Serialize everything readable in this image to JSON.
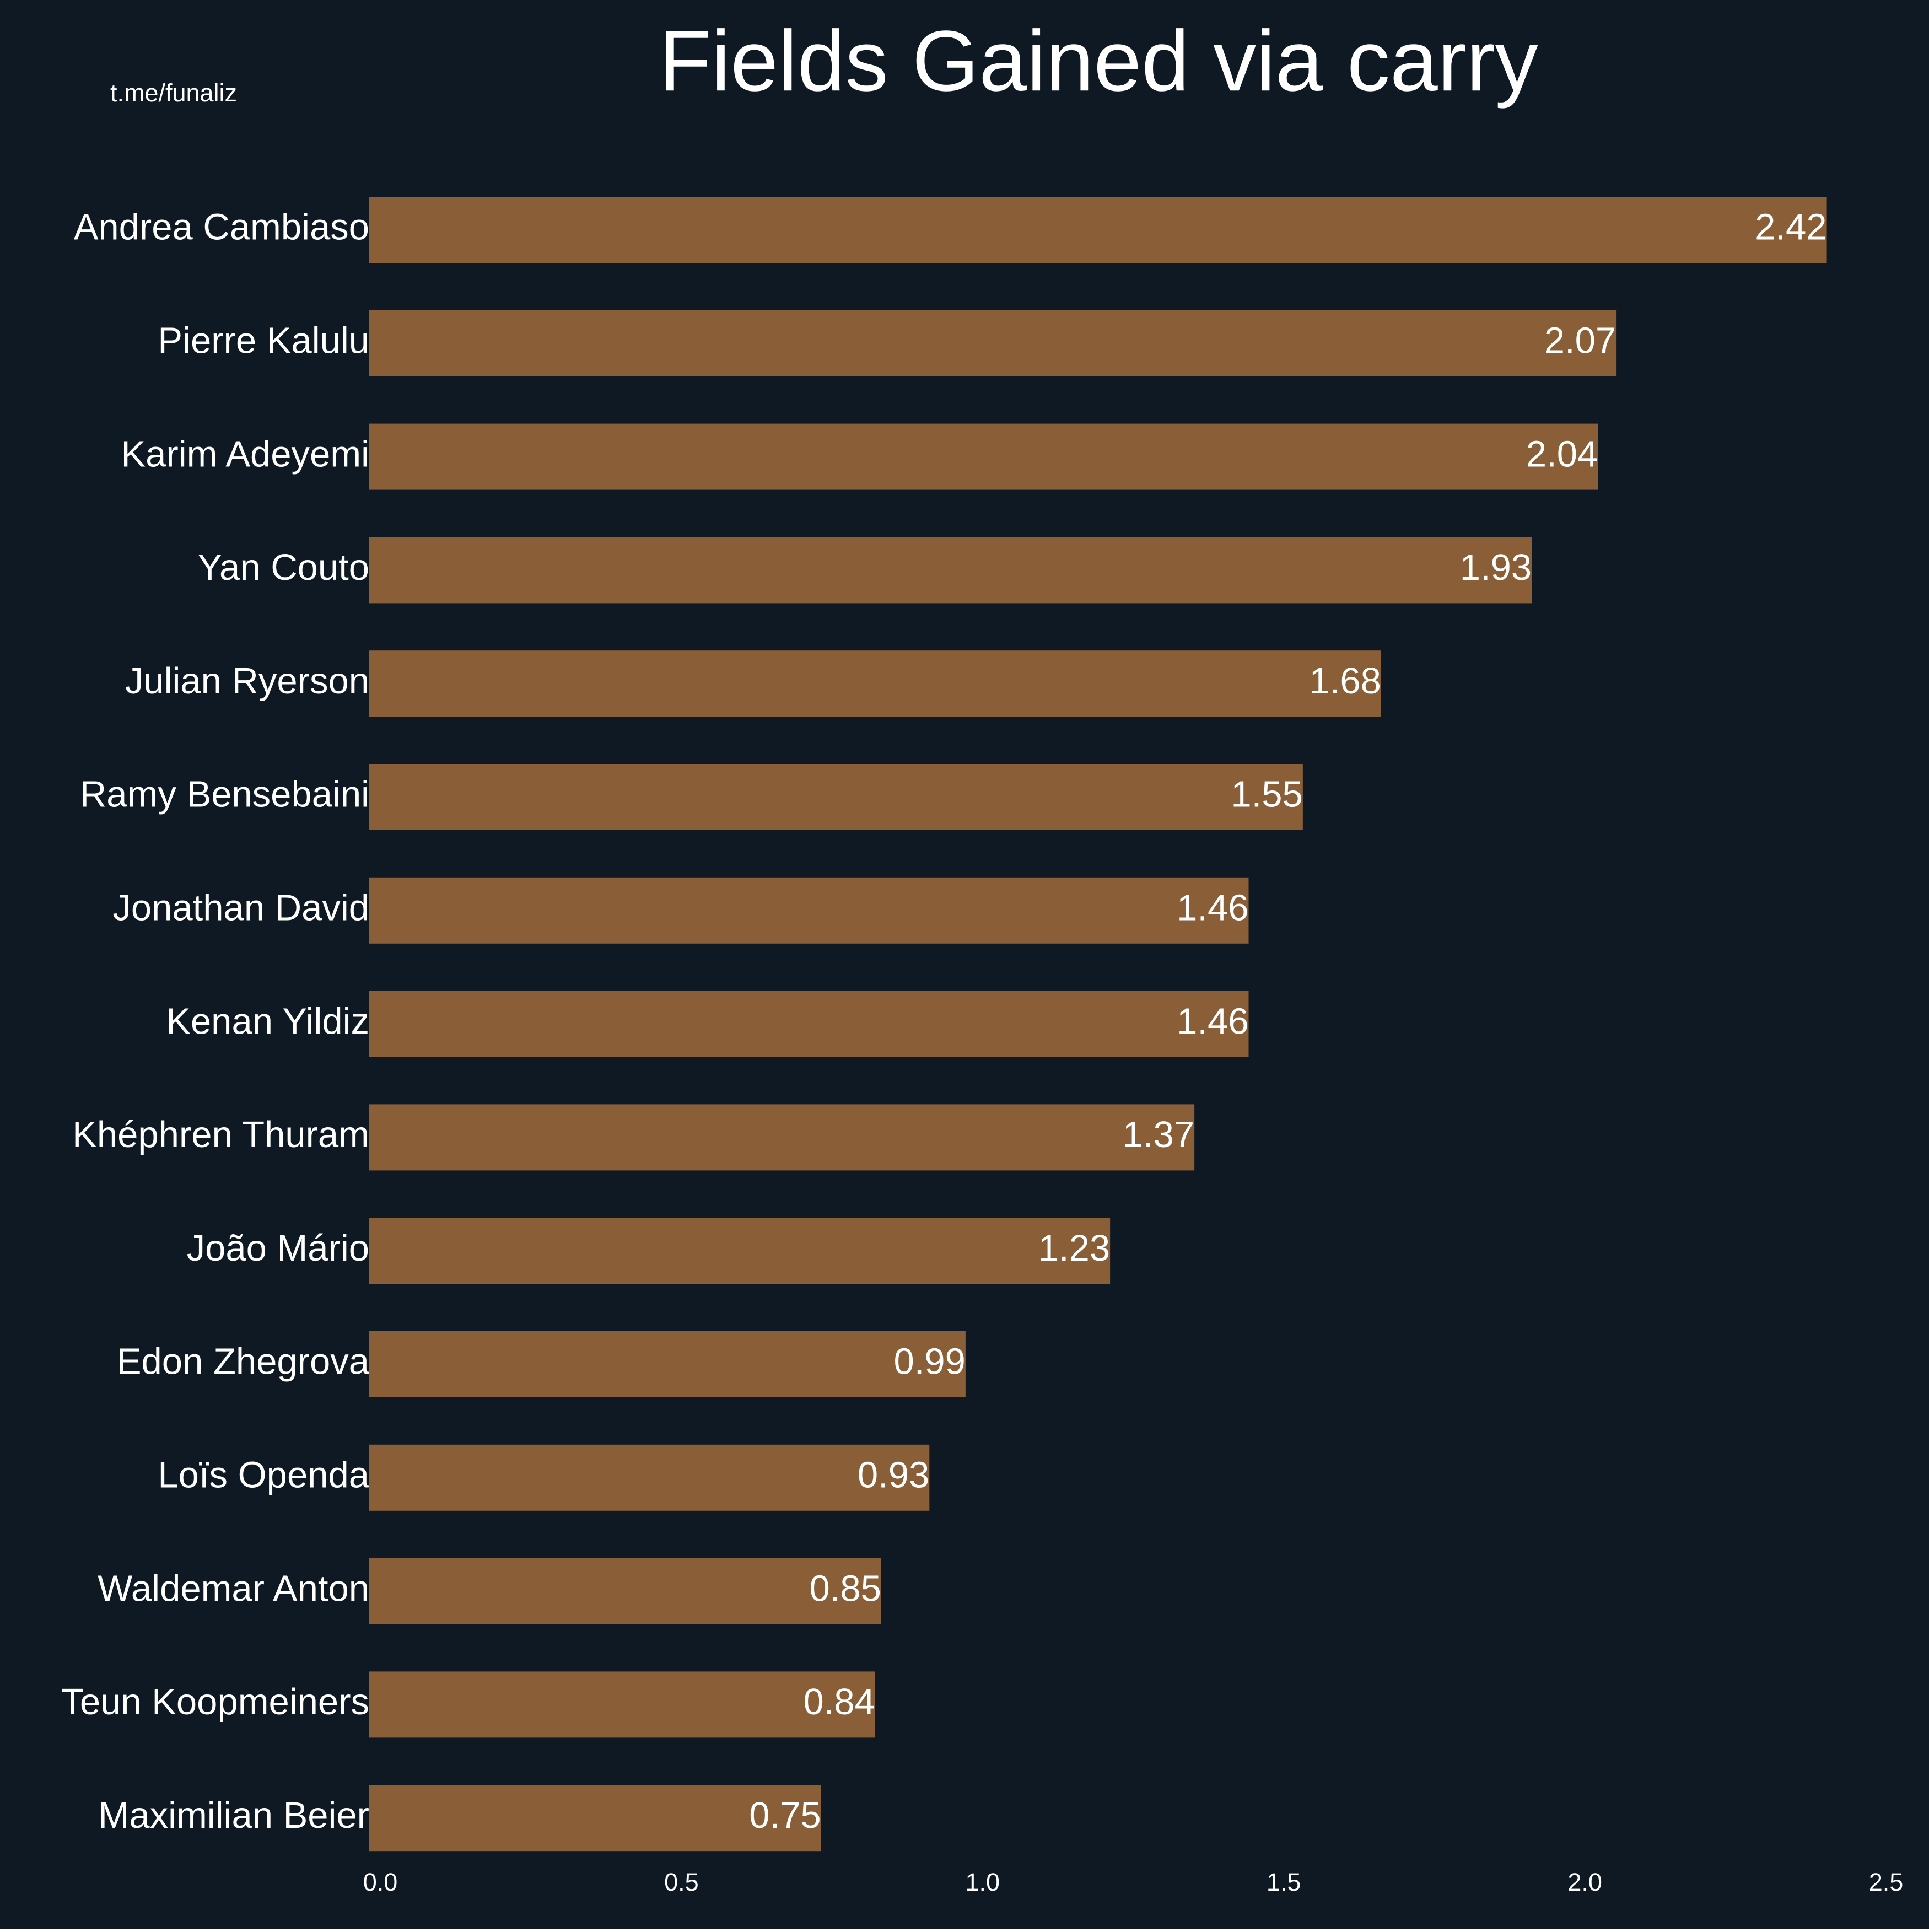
{
  "chart_data": {
    "type": "barh",
    "title": "Fields Gained via carry",
    "watermark": "t.me/funaliz",
    "categories": [
      "Andrea Cambiaso",
      "Pierre Kalulu",
      "Karim Adeyemi",
      "Yan Couto",
      "Julian Ryerson",
      "Ramy Bensebaini",
      "Jonathan David",
      "Kenan Yildiz",
      "Khéphren Thuram",
      "João Mário",
      "Edon Zhegrova",
      "Loïs Openda",
      "Waldemar Anton",
      "Teun Koopmeiners",
      "Maximilian Beier"
    ],
    "values": [
      2.42,
      2.07,
      2.04,
      1.93,
      1.68,
      1.55,
      1.46,
      1.46,
      1.37,
      1.23,
      0.99,
      0.93,
      0.85,
      0.84,
      0.75
    ],
    "color": "#8a5f38",
    "background": "#0f1923",
    "xlim": [
      0,
      2.5
    ],
    "xticks": [
      {
        "value": 0,
        "label": "0.0"
      },
      0.5,
      {
        "value": 1,
        "label": "1.0"
      },
      1.5,
      {
        "value": 2,
        "label": "2.0"
      },
      2.5
    ]
  }
}
